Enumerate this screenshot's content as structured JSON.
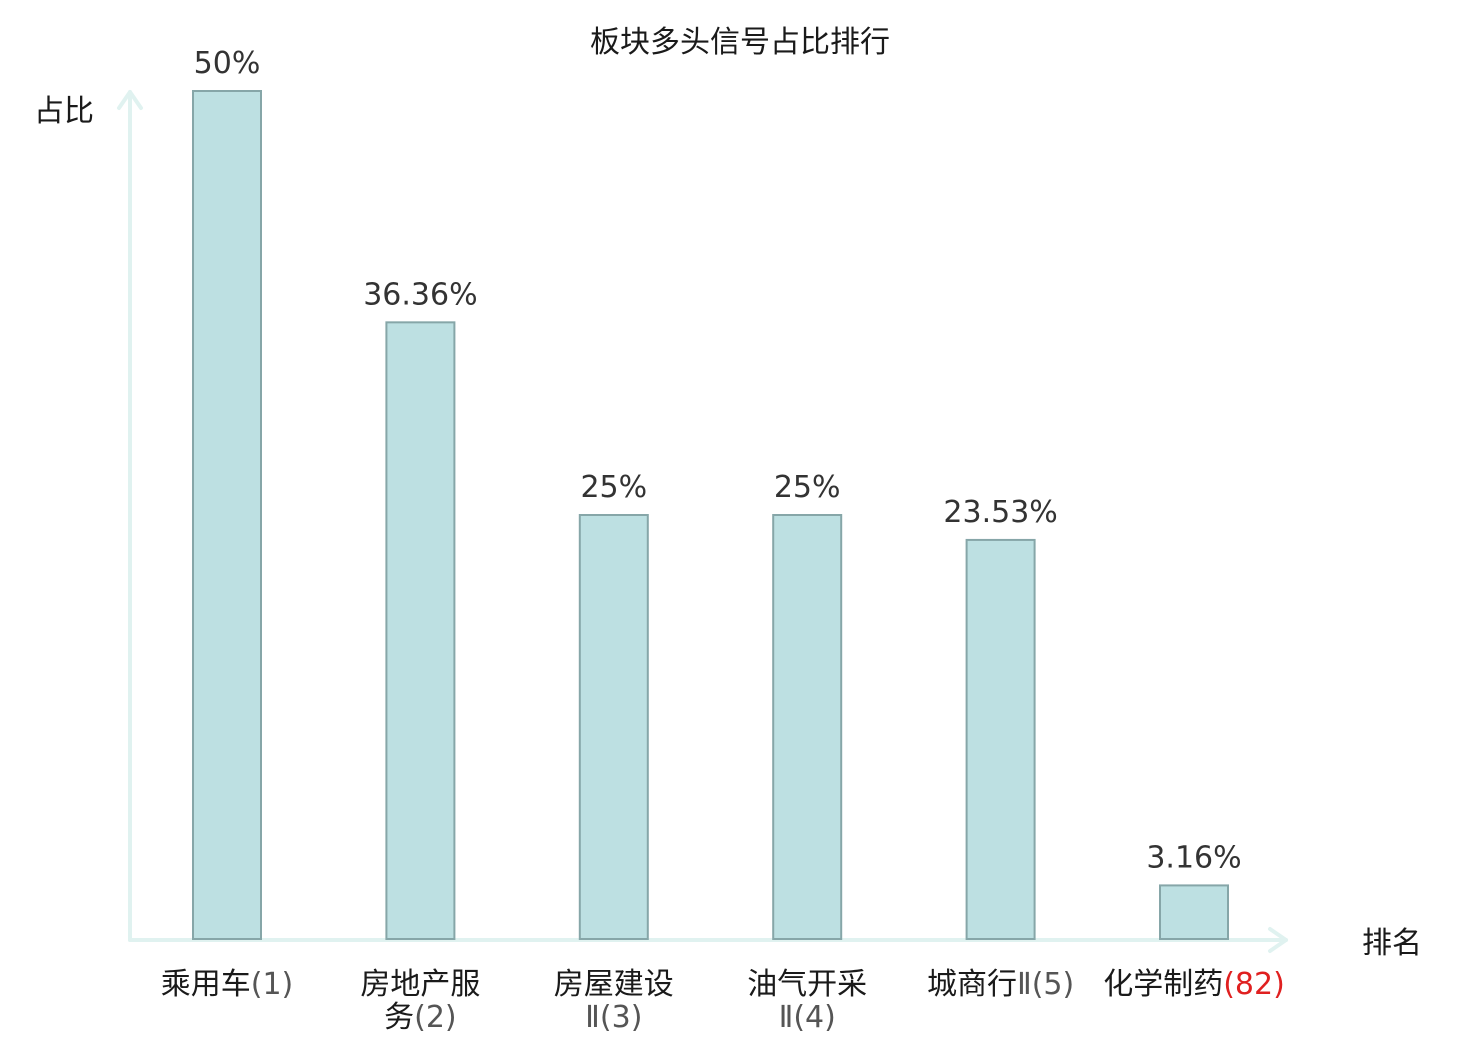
{
  "chart_data": {
    "type": "bar",
    "title": "板块多头信号占比排行",
    "ylabel": "占比",
    "xlabel": "排名",
    "ylim": [
      0,
      50
    ],
    "grid": false,
    "value_labels": [
      "50%",
      "36.36%",
      "25%",
      "25%",
      "23.53%",
      "3.16%"
    ],
    "values": [
      50,
      36.36,
      25,
      25,
      23.53,
      3.16
    ],
    "categories": [
      {
        "lines": [
          {
            "name": "乘用车",
            "rank": "(1)"
          }
        ],
        "highlight": false
      },
      {
        "lines": [
          {
            "name": "房地产服",
            "rank": ""
          },
          {
            "name": "务",
            "rank": "(2)"
          }
        ],
        "highlight": false
      },
      {
        "lines": [
          {
            "name": "房屋建设",
            "rank": ""
          },
          {
            "name": "",
            "rank": "Ⅱ(3)"
          }
        ],
        "highlight": false
      },
      {
        "lines": [
          {
            "name": "油气开采",
            "rank": ""
          },
          {
            "name": "",
            "rank": "Ⅱ(4)"
          }
        ],
        "highlight": false
      },
      {
        "lines": [
          {
            "name": "城商行",
            "rank": "Ⅱ(5)"
          }
        ],
        "highlight": false
      },
      {
        "lines": [
          {
            "name": "化学制药",
            "rank": "(82)"
          }
        ],
        "highlight": true
      }
    ],
    "colors": {
      "bar_fill": "#bde0e2",
      "bar_stroke": "#86a6a8",
      "axis": "#e0f2f0",
      "highlight": "#e02020"
    }
  }
}
